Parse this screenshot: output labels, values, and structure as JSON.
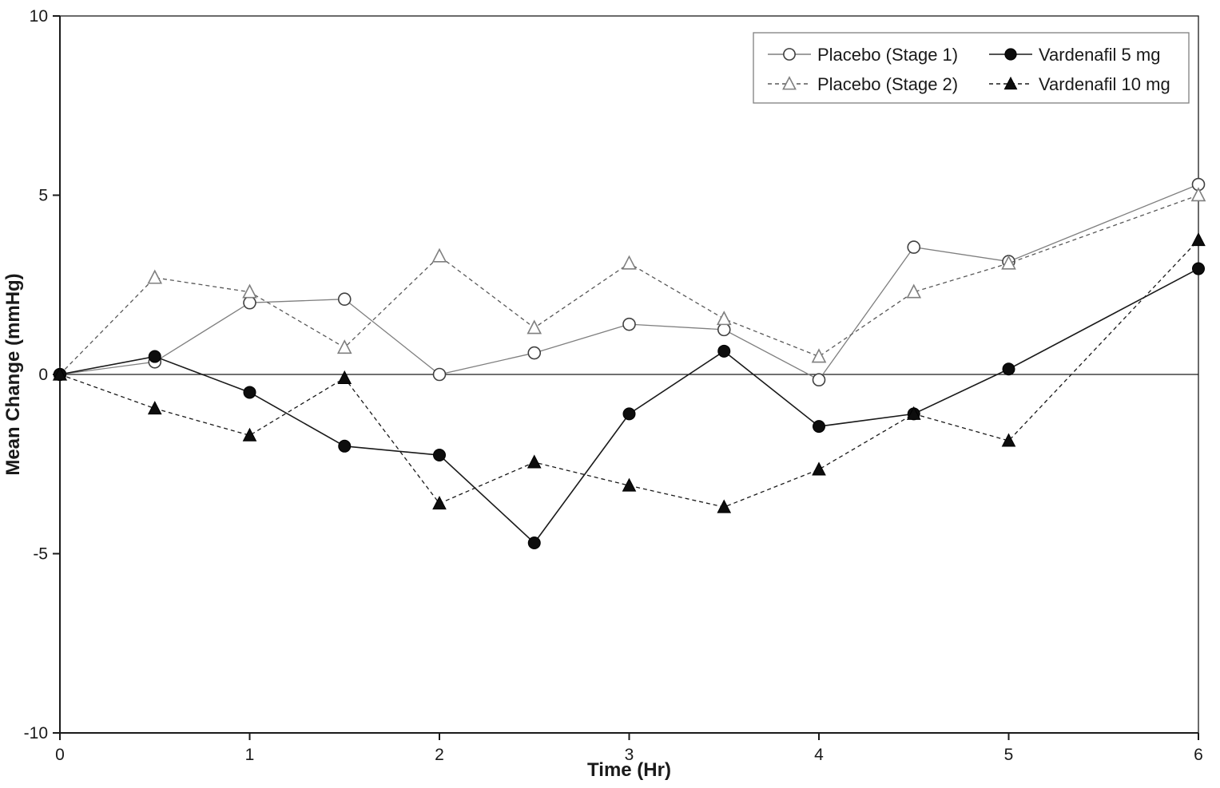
{
  "figure": {
    "background": "#ffffff",
    "axis_color": "#1a1a1a"
  },
  "chart_data": {
    "type": "line",
    "title": "",
    "xlabel": "Time (Hr)",
    "ylabel": "Mean Change (mmHg)",
    "xlim": [
      0,
      6
    ],
    "ylim": [
      -10,
      10
    ],
    "x_ticks": [
      0,
      1,
      2,
      3,
      4,
      5,
      6
    ],
    "y_ticks": [
      10,
      5,
      0,
      -5,
      -10
    ],
    "grid": false,
    "zero_line": true,
    "plot_border": true,
    "legend_position": "top-right",
    "legend_columns": 2,
    "x": [
      0,
      0.5,
      1,
      1.5,
      2,
      2.5,
      3,
      3.5,
      4,
      4.5,
      5,
      6
    ],
    "series": [
      {
        "name": "Placebo (Stage 1)",
        "marker": "circle-open",
        "line_style": "solid",
        "line_color": "#7f7f7f",
        "marker_stroke": "#404040",
        "marker_fill": "#ffffff",
        "values": [
          0,
          0.35,
          2.0,
          2.1,
          0.0,
          0.6,
          1.4,
          1.25,
          -0.15,
          3.55,
          3.15,
          5.3
        ]
      },
      {
        "name": "Placebo (Stage 2)",
        "marker": "triangle-open",
        "line_style": "dashed",
        "line_color": "#595959",
        "marker_stroke": "#7f7f7f",
        "marker_fill": "#ffffff",
        "values": [
          0,
          2.7,
          2.3,
          0.75,
          3.3,
          1.3,
          3.1,
          1.55,
          0.5,
          2.3,
          3.1,
          5.0
        ]
      },
      {
        "name": "Vardenafil 5 mg",
        "marker": "circle-filled",
        "line_style": "solid",
        "line_color": "#1a1a1a",
        "marker_stroke": "#000000",
        "marker_fill": "#0d0d0d",
        "values": [
          0,
          0.5,
          -0.5,
          -2.0,
          -2.25,
          -4.7,
          -1.1,
          0.65,
          -1.45,
          -1.1,
          0.15,
          2.95
        ]
      },
      {
        "name": "Vardenafil 10 mg",
        "marker": "triangle-filled",
        "line_style": "dashed",
        "line_color": "#1a1a1a",
        "marker_stroke": "#000000",
        "marker_fill": "#0d0d0d",
        "values": [
          0,
          -0.95,
          -1.7,
          -0.1,
          -3.6,
          -2.45,
          -3.1,
          -3.7,
          -2.65,
          -1.1,
          -1.85,
          3.75
        ]
      }
    ]
  }
}
